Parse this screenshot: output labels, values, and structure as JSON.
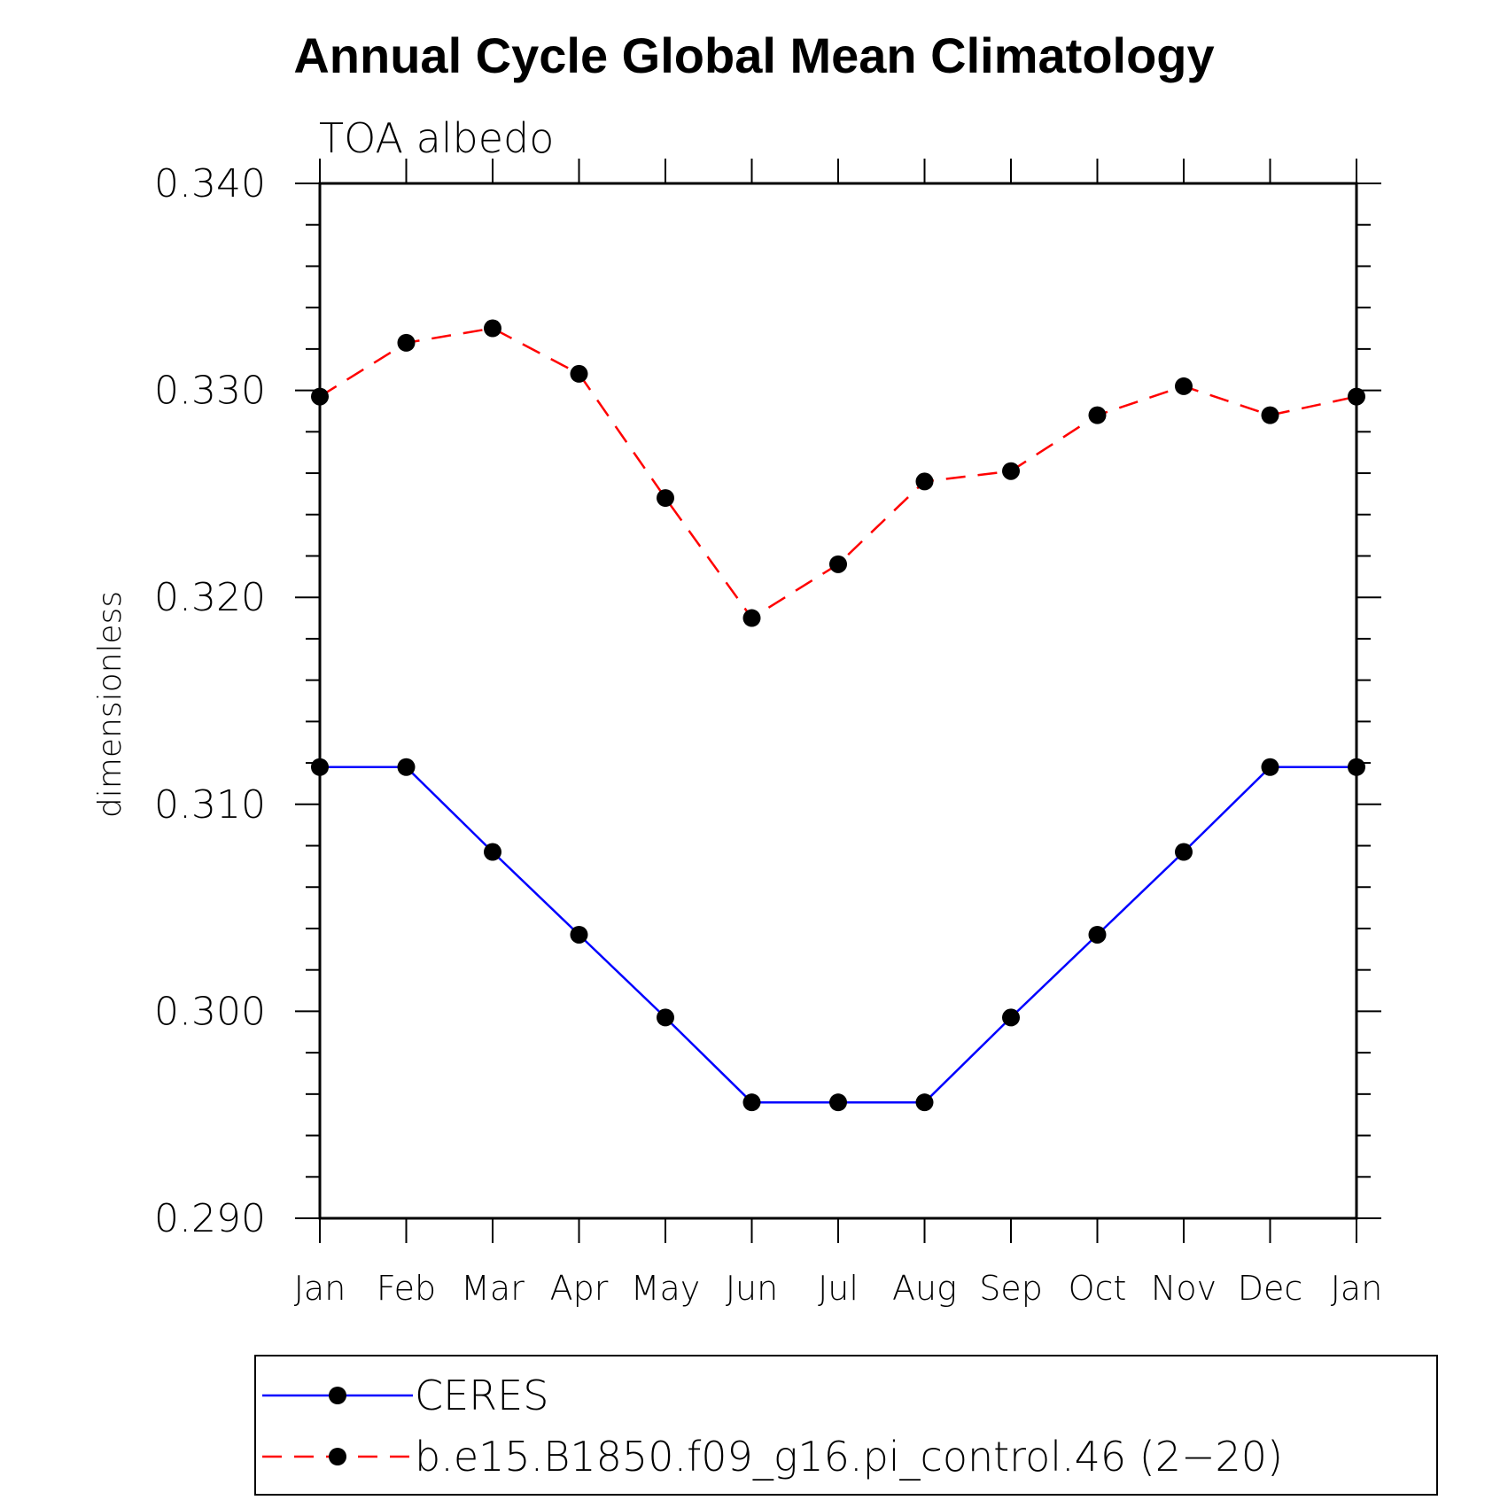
{
  "chart_data": {
    "type": "line",
    "title": "Annual Cycle Global Mean Climatology",
    "subtitle": "TOA albedo",
    "ylabel": "dimensionless",
    "xlabel": "",
    "categories": [
      "Jan",
      "Feb",
      "Mar",
      "Apr",
      "May",
      "Jun",
      "Jul",
      "Aug",
      "Sep",
      "Oct",
      "Nov",
      "Dec",
      "Jan"
    ],
    "ylim": [
      0.29,
      0.34
    ],
    "y_ticks": [
      "0.290",
      "0.300",
      "0.310",
      "0.320",
      "0.330",
      "0.340"
    ],
    "grid": false,
    "legend_position": "bottom",
    "series": [
      {
        "name": "CERES",
        "color": "#0000ff",
        "style": "solid",
        "marker": "filled-circle",
        "values": [
          0.3118,
          0.3118,
          0.3077,
          0.3037,
          0.2997,
          0.2956,
          0.2956,
          0.2956,
          0.2997,
          0.3037,
          0.3077,
          0.3118,
          0.3118
        ]
      },
      {
        "name": "b.e15.B1850.f09_g16.pi_control.46 (2−20)",
        "color": "#ff0000",
        "style": "dashed",
        "marker": "filled-circle",
        "values": [
          0.3297,
          0.3323,
          0.333,
          0.3308,
          0.3248,
          0.319,
          0.3216,
          0.3256,
          0.3261,
          0.3288,
          0.3302,
          0.3288,
          0.3297
        ]
      }
    ]
  }
}
